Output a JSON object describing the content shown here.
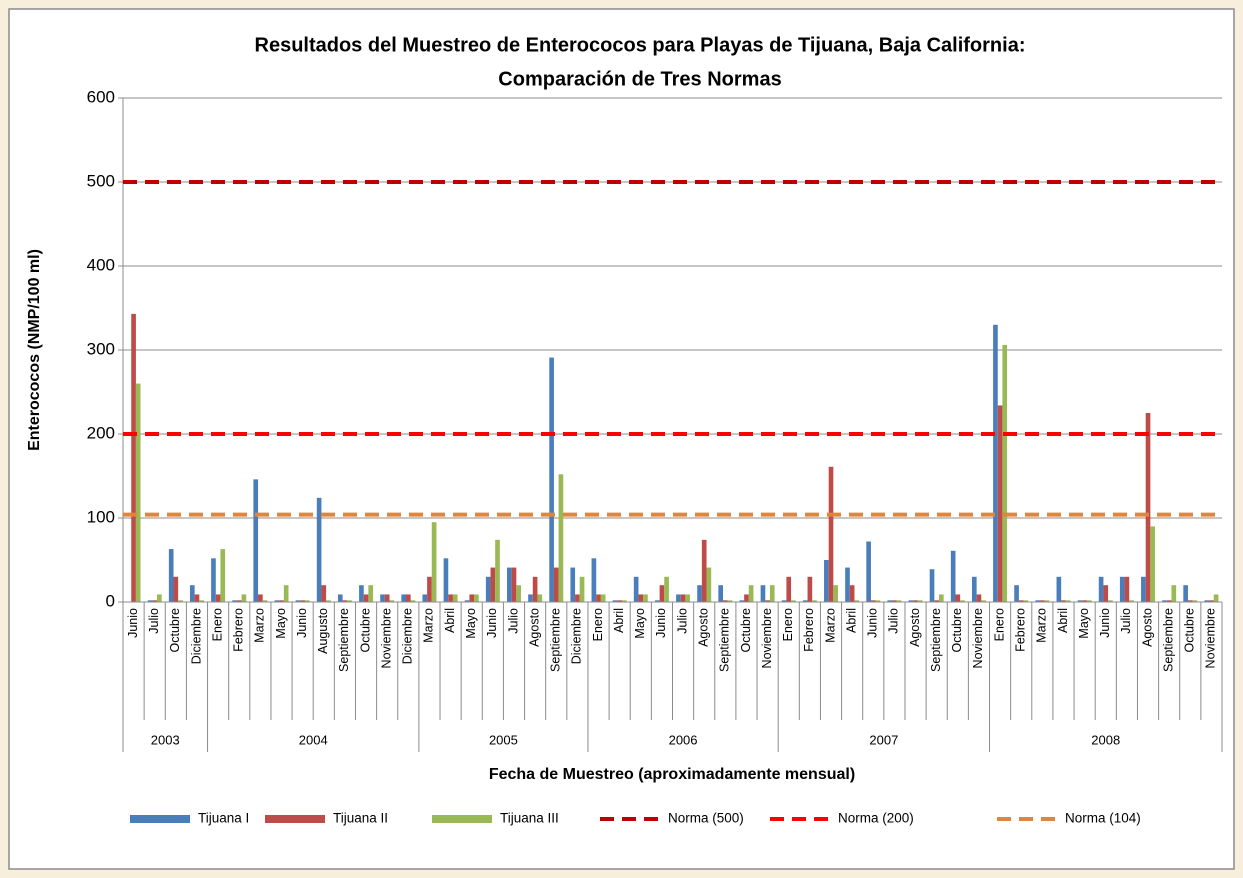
{
  "chart_data": {
    "type": "bar",
    "title": [
      "Resultados del Muestreo de Enterococos para Playas de Tijuana, Baja California:",
      "Comparación de Tres Normas"
    ],
    "ylabel": "Enterococos (NMP/100 ml)",
    "xlabel": "Fecha de Muestreo (aproximadamente  mensual)",
    "ylim": [
      0,
      600
    ],
    "yticks": [
      0,
      100,
      200,
      300,
      400,
      500,
      600
    ],
    "grid": true,
    "category_groups": [
      {
        "label": "2003",
        "categories": [
          "Junio",
          "Julio",
          "Octubre",
          "Diciembre"
        ]
      },
      {
        "label": "2004",
        "categories": [
          "Enero",
          "Febrero",
          "Marzo",
          "Mayo",
          "Junio",
          "Augusto",
          "Septiembre",
          "Octubre",
          "Noviembre",
          "Diciembre"
        ]
      },
      {
        "label": "2005",
        "categories": [
          "Marzo",
          "Abril",
          "Mayo",
          "Junio",
          "Julio",
          "Agosto",
          "Septiembre",
          "Diciembre"
        ]
      },
      {
        "label": "2006",
        "categories": [
          "Enero",
          "Abril",
          "Mayo",
          "Junio",
          "Julio",
          "Agosto",
          "Septiembre",
          "Octubre",
          "Noviembre"
        ]
      },
      {
        "label": "2007",
        "categories": [
          "Enero",
          "Febrero",
          "Marzo",
          "Abril",
          "Junio",
          "Julio",
          "Agosto",
          "Septiembre",
          "Octubre",
          "Noviembre"
        ]
      },
      {
        "label": "2008",
        "categories": [
          "Enero",
          "Febrero",
          "Marzo",
          "Abril",
          "Mayo",
          "Junio",
          "Julio",
          "Agosto",
          "Septiembre",
          "Octubre",
          "Noviembre"
        ]
      }
    ],
    "series": [
      {
        "name": "Tijuana I",
        "color": "#4a7ebb",
        "values": [
          0,
          2,
          63,
          20,
          52,
          2,
          146,
          2,
          2,
          124,
          9,
          20,
          9,
          9,
          9,
          52,
          2,
          30,
          41,
          9,
          291,
          41,
          52,
          2,
          30,
          2,
          9,
          20,
          20,
          2,
          20,
          2,
          2,
          50,
          41,
          72,
          2,
          2,
          39,
          61,
          30,
          330,
          20,
          2,
          30,
          2,
          30,
          30,
          30,
          2,
          20,
          2
        ]
      },
      {
        "name": "Tijuana II",
        "color": "#be4b48",
        "values": [
          343,
          2,
          30,
          9,
          9,
          2,
          9,
          2,
          2,
          20,
          2,
          9,
          9,
          9,
          30,
          9,
          9,
          41,
          41,
          30,
          41,
          9,
          9,
          2,
          9,
          20,
          9,
          74,
          2,
          9,
          2,
          30,
          30,
          161,
          20,
          2,
          2,
          2,
          2,
          9,
          9,
          234,
          2,
          2,
          2,
          2,
          20,
          30,
          225,
          2,
          2,
          2
        ]
      },
      {
        "name": "Tijuana III",
        "color": "#98b954",
        "values": [
          260,
          9,
          2,
          2,
          63,
          9,
          2,
          20,
          2,
          2,
          2,
          20,
          2,
          2,
          95,
          9,
          9,
          74,
          20,
          9,
          152,
          30,
          9,
          2,
          9,
          30,
          9,
          41,
          2,
          20,
          20,
          2,
          2,
          20,
          2,
          2,
          2,
          2,
          9,
          2,
          2,
          306,
          2,
          2,
          2,
          2,
          2,
          2,
          90,
          20,
          2,
          9
        ]
      }
    ],
    "reference_lines": [
      {
        "name": "Norma (500)",
        "color": "#c00000",
        "value": 500
      },
      {
        "name": "Norma (200)",
        "color": "#ff0000",
        "value": 200
      },
      {
        "name": "Norma (104)",
        "color": "#e0853a",
        "value": 104
      }
    ]
  }
}
